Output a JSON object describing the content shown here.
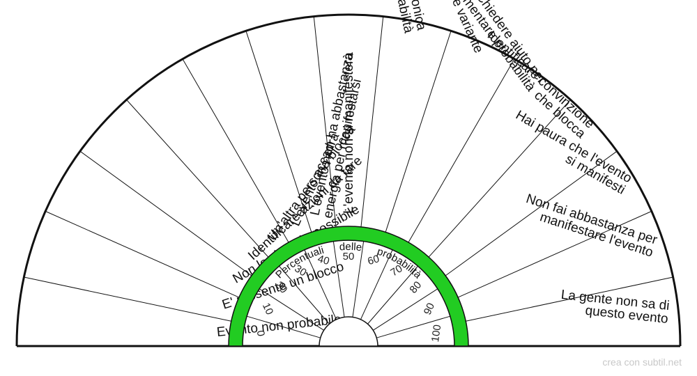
{
  "sectors": [
    [
      "Evento non probabile"
    ],
    [
      "E' presente un blocco"
    ],
    [
      "Non lo si crede possibile"
    ],
    [
      "Identificare azioni da fare"
    ],
    [
      "Un'altra persona blocca"
    ],
    [
      "L'evento accadrà"
    ],
    [
      "L'evento non ha abbastanza",
      "energia per manifestarsi"
    ],
    [
      "L'evento non si manifesterà"
    ],
    [
      "Lavorare con la Radionica",
      "per aumentare le propabilità"
    ],
    [
      "Visualizzare variante"
    ],
    [
      "Chiedere aiuto per",
      "aumentare probabilità"
    ],
    [
      "Identificare convinzione",
      "che blocca"
    ],
    [
      "Hai paura che l'evento",
      "si manifesti"
    ],
    [
      "Non fai abbastanza per",
      "manifestare l'evento"
    ],
    [
      "La gente non sa di",
      "questo evento"
    ]
  ],
  "scale": [
    "0",
    "10",
    "20",
    "30",
    "40",
    "50",
    "60",
    "70",
    "80",
    "90",
    "100"
  ],
  "ring_words": [
    "Percentuali",
    "delle",
    "probabilità"
  ],
  "colors": {
    "ring": "#22cc22",
    "line": "#111111"
  },
  "credit": "crea con subtil.net"
}
